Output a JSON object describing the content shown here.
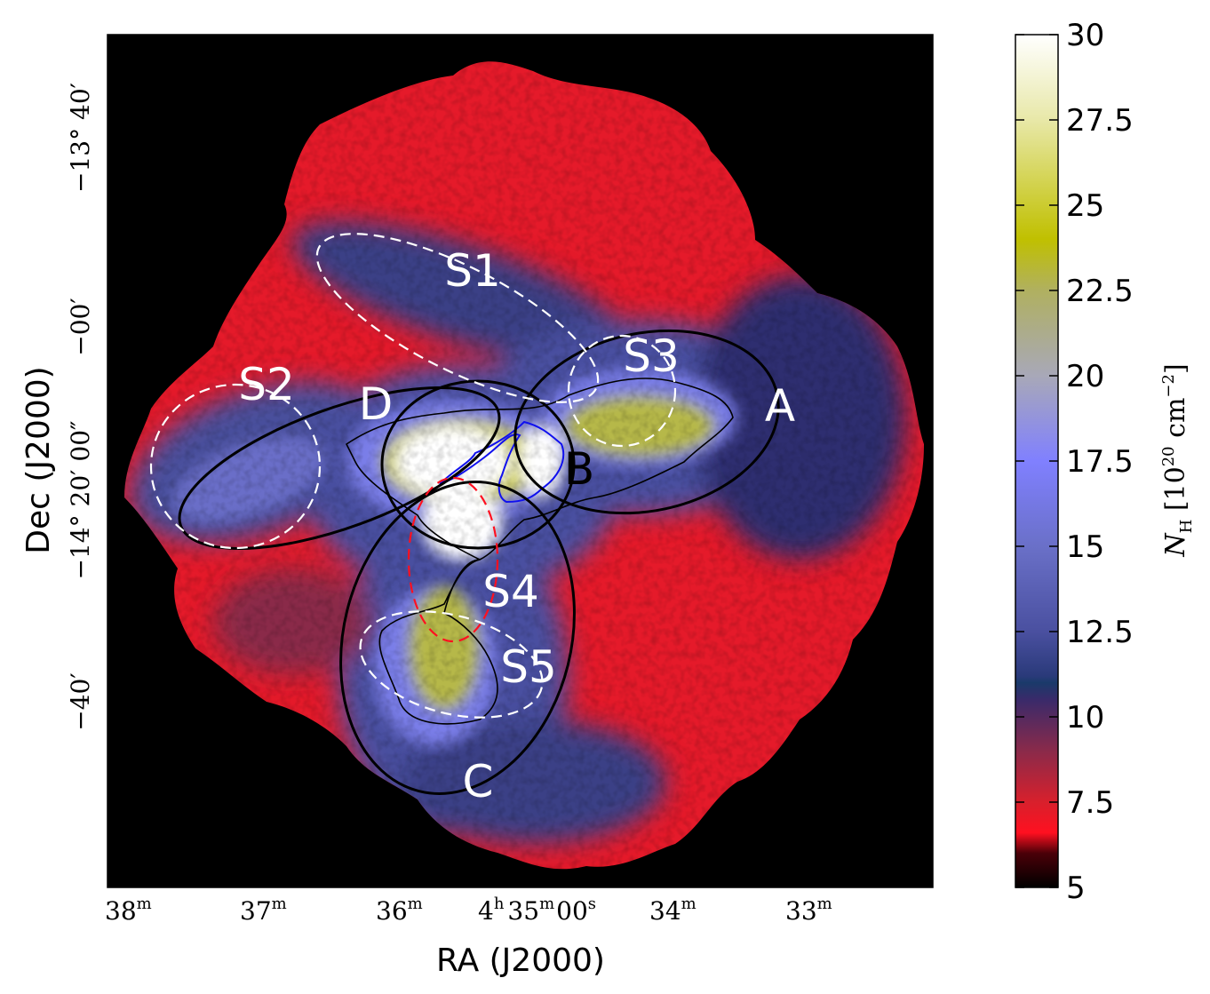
{
  "chart_data": {
    "type": "heatmap",
    "title": "",
    "xlabel": "RA (J2000)",
    "ylabel": "Dec (J2000)",
    "x_ticks": [
      {
        "label": "38",
        "sup": "m"
      },
      {
        "label": "37",
        "sup": "m"
      },
      {
        "label": "36",
        "sup": "m"
      },
      {
        "label": "4",
        "sup": "h",
        "label2": "35",
        "sup2": "m",
        "label3": "00",
        "sup3": "s"
      },
      {
        "label": "34",
        "sup": "m"
      },
      {
        "label": "33",
        "sup": "m"
      }
    ],
    "y_ticks": [
      {
        "label": "−13° 40′"
      },
      {
        "label": "−00′"
      },
      {
        "label": "−14° 20′ 00″"
      },
      {
        "label": "−40′"
      }
    ],
    "colorbar": {
      "label": "N_H [10^20 cm^-2]",
      "label_parts": {
        "symbol": "N",
        "sub": "H",
        "unit_open": " [10",
        "exp": "20",
        "unit_mid": " cm",
        "exp2": "−2",
        "unit_close": "]"
      },
      "range": [
        5,
        30
      ],
      "ticks": [
        30,
        27.5,
        25,
        22.5,
        20,
        17.5,
        15,
        12.5,
        10,
        7.5,
        5
      ],
      "tick_labels": [
        "30",
        "27.5",
        "25",
        "22.5",
        "20",
        "17.5",
        "15",
        "12.5",
        "10",
        "7.5",
        "5"
      ],
      "colormap": [
        {
          "v": 5.0,
          "color": "#000000"
        },
        {
          "v": 6.0,
          "color": "#4a0008"
        },
        {
          "v": 6.6,
          "color": "#ff1020"
        },
        {
          "v": 7.5,
          "color": "#d8202c"
        },
        {
          "v": 9.0,
          "color": "#8a2a4a"
        },
        {
          "v": 10.5,
          "color": "#3a2a6a"
        },
        {
          "v": 11.0,
          "color": "#1a3a6a"
        },
        {
          "v": 11.2,
          "color": "#2a3a7a"
        },
        {
          "v": 12.5,
          "color": "#4a50a0"
        },
        {
          "v": 15.0,
          "color": "#6a70c8"
        },
        {
          "v": 17.5,
          "color": "#8080ff"
        },
        {
          "v": 20.0,
          "color": "#a8a8b8"
        },
        {
          "v": 22.5,
          "color": "#b0b060"
        },
        {
          "v": 24.0,
          "color": "#c0c000"
        },
        {
          "v": 27.5,
          "color": "#e8e8a8"
        },
        {
          "v": 30.0,
          "color": "#ffffff"
        }
      ]
    },
    "regions": [
      {
        "name": "S1",
        "style": "white-dashed"
      },
      {
        "name": "S2",
        "style": "white-dashed"
      },
      {
        "name": "S3",
        "style": "white-dashed"
      },
      {
        "name": "S4",
        "style": "red-dashed"
      },
      {
        "name": "S5",
        "style": "white-dashed"
      },
      {
        "name": "A",
        "style": "black-solid"
      },
      {
        "name": "B",
        "style": "black-solid"
      },
      {
        "name": "C",
        "style": "black-solid"
      },
      {
        "name": "D",
        "style": "black-solid"
      }
    ],
    "colors": {
      "background": "#000000",
      "red_region": "#ff1020",
      "blue_region": "#8080ff",
      "yellow_core": "#c0c000",
      "white_core": "#ffffff",
      "blue_contour": "#1010ee"
    }
  }
}
